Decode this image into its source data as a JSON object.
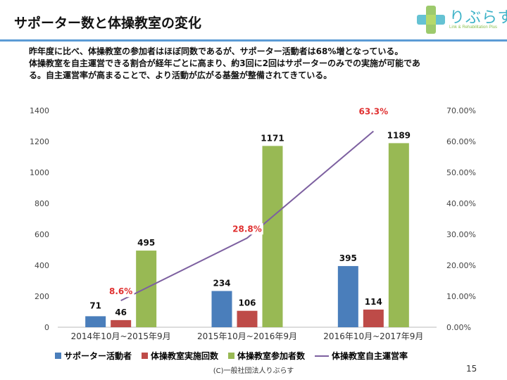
{
  "slide": {
    "title": "サポーター数と体操教室の変化",
    "summary_lines": [
      "昨年度に比べ、体操教室の参加者はほぼ同数であるが、サポーター活動者は68%増となっている。",
      "体操教室を自主運営できる割合が経年ごとに高まり、約3回に2回はサポーターのみでの実施が可能であ",
      "る。自主運営率が高まることで、より活動が広がる基盤が整備されてきている。"
    ],
    "logo_text": "りぶらす",
    "logo_subtext": "Link & Rehabilitation Plus",
    "footer": "(C)一般社団法人りぶらす",
    "page_number": "15"
  },
  "chart_data": {
    "type": "bar",
    "categories": [
      "2014年10月~2015年9月",
      "2015年10月~2016年9月",
      "2016年10月~2017年9月"
    ],
    "series": [
      {
        "name": "サポーター活動者",
        "axis": "left",
        "color": "#4a7ebb",
        "values": [
          71,
          234,
          395
        ]
      },
      {
        "name": "体操教室実施回数",
        "axis": "left",
        "color": "#be4b48",
        "values": [
          46,
          106,
          114
        ]
      },
      {
        "name": "体操教室参加者数",
        "axis": "left",
        "color": "#98b954",
        "values": [
          495,
          1171,
          1189
        ]
      },
      {
        "name": "体操教室自主運営率",
        "axis": "right",
        "type": "line",
        "color": "#7d60a0",
        "values": [
          8.6,
          28.8,
          63.3
        ],
        "labels": [
          "8.6%",
          "28.8%",
          "63.3%"
        ]
      }
    ],
    "left_axis": {
      "min": 0,
      "max": 1400,
      "ticks": [
        "0",
        "200",
        "400",
        "600",
        "800",
        "1000",
        "1200",
        "1400"
      ]
    },
    "right_axis": {
      "min": 0,
      "max": 70,
      "ticks": [
        "0.00%",
        "10.00%",
        "20.00%",
        "30.00%",
        "40.00%",
        "50.00%",
        "60.00%",
        "70.00%"
      ]
    },
    "percent_label_color": "#e03030",
    "grid": false,
    "legend_position": "bottom"
  }
}
